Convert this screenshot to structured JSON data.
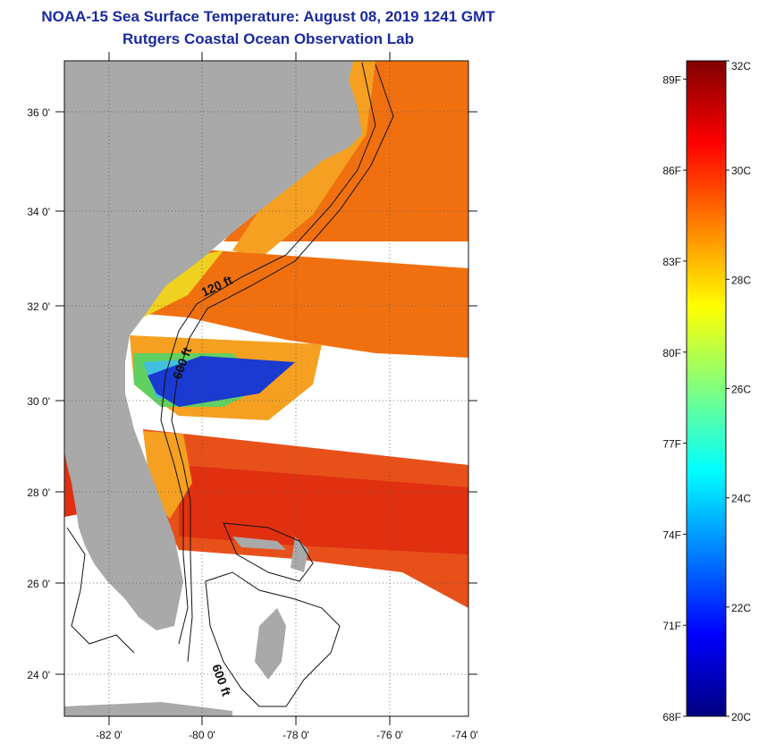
{
  "title": {
    "line1": "NOAA-15 Sea Surface Temperature:  August 08, 2019 1241 GMT",
    "line2": "Rutgers Coastal Ocean Observation Lab"
  },
  "map": {
    "lat_labels": [
      "36 0'",
      "34 0'",
      "32 0'",
      "30 0'",
      "28 0'",
      "26 0'",
      "24 0'"
    ],
    "lon_labels": [
      "-82 0'",
      "-80 0'",
      "-78 0'",
      "-76 0'",
      "-74 0'"
    ],
    "contour_labels": [
      "120 ft",
      "600 ft",
      "600 ft"
    ],
    "colors": {
      "land": "#a9a9a9",
      "warm": "#f07010",
      "hot": "#e03010",
      "mid": "#f5a020",
      "yellow": "#f0e020",
      "green": "#60d060",
      "cyan": "#40c0e0",
      "blue": "#1a3ad0"
    }
  },
  "colorbar": {
    "fahrenheit_labels": [
      "89F",
      "86F",
      "83F",
      "80F",
      "77F",
      "74F",
      "71F",
      "68F"
    ],
    "celsius_labels": [
      "32C",
      "30C",
      "28C",
      "26C",
      "24C",
      "22C",
      "20C"
    ],
    "range_c": [
      20,
      32
    ],
    "stops": [
      "#00007f",
      "#0000ff",
      "#0080ff",
      "#00ffff",
      "#80ff80",
      "#ffff00",
      "#ff8000",
      "#ff0000",
      "#7f0000"
    ]
  }
}
